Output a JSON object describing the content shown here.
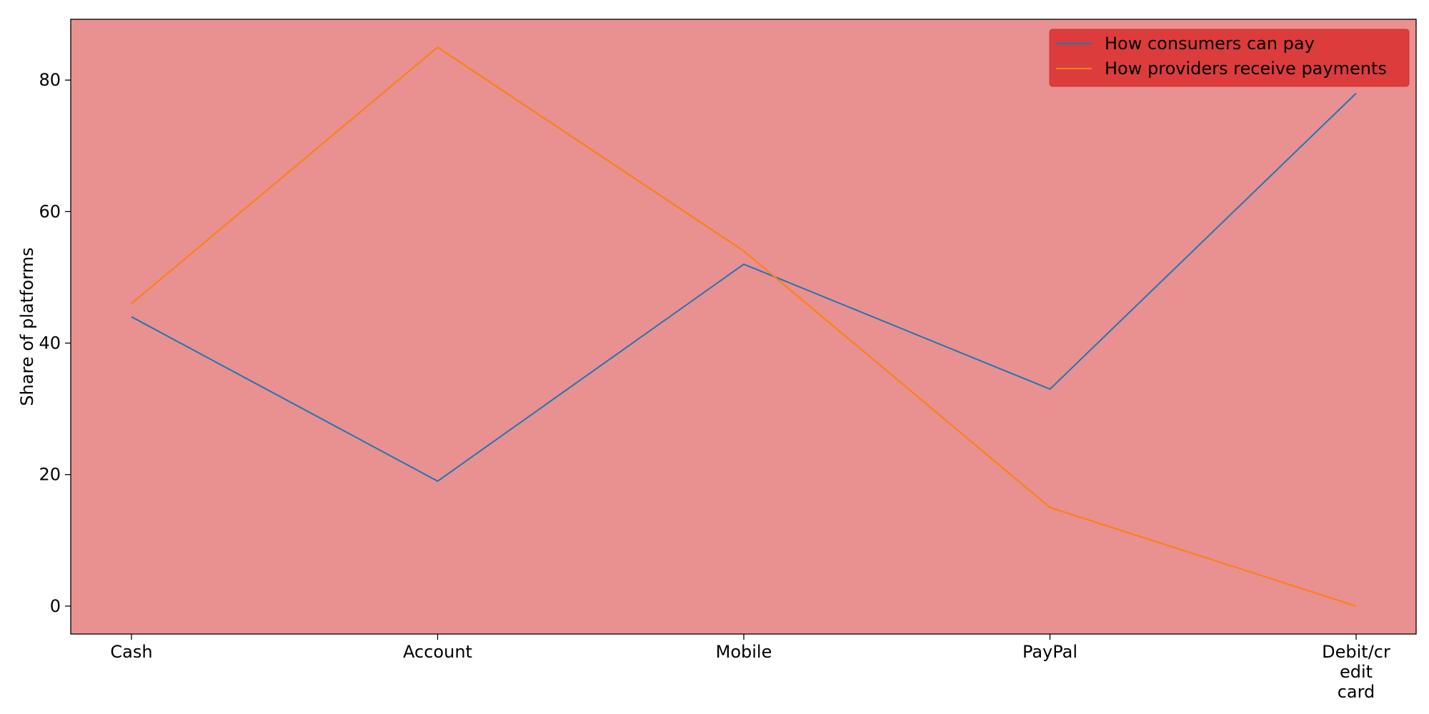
{
  "chart_data": {
    "type": "line",
    "title": "",
    "xlabel": "",
    "ylabel": "Share of platforms",
    "categories": [
      "Cash",
      "Account",
      "Mobile",
      "PayPal",
      "Debit/credit card"
    ],
    "category_tick_lines": [
      [
        "Cash"
      ],
      [
        "Account"
      ],
      [
        "Mobile"
      ],
      [
        "PayPal"
      ],
      [
        "Debit/cr",
        "edit",
        "card"
      ]
    ],
    "yticks": [
      0,
      20,
      40,
      60,
      80
    ],
    "ylim": [
      -4.25,
      89.25
    ],
    "grid": false,
    "legend_position": "top-right",
    "series": [
      {
        "name": "How consumers can pay",
        "values": [
          44,
          19,
          52,
          33,
          78
        ],
        "color": "#1f77b4"
      },
      {
        "name": "How providers receive payments",
        "values": [
          46,
          85,
          54,
          15,
          0
        ],
        "color": "#ff7f0e"
      }
    ],
    "colors": {
      "plot_background": "#e99090",
      "legend_background": "#dc3c3c",
      "axis": "#000000"
    }
  }
}
